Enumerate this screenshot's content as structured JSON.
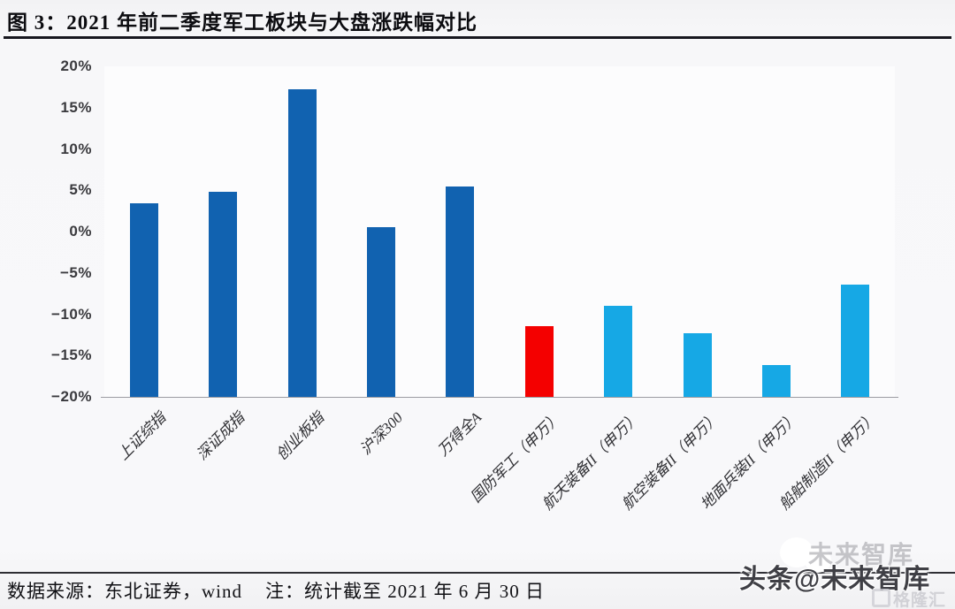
{
  "header": {
    "title": "图 3：2021 年前二季度军工板块与大盘涨跌幅对比"
  },
  "chart_data": {
    "type": "bar",
    "title": "2021 年前二季度军工板块与大盘涨跌幅对比",
    "categories": [
      "上证综指",
      "深证成指",
      "创业板指",
      "沪深300",
      "万得全A",
      "国防军工（申万）",
      "航天装备II（申万）",
      "航空装备II（申万）",
      "地面兵装II（申万）",
      "船舶制造II（申万）"
    ],
    "values": [
      3.4,
      4.8,
      17.2,
      0.5,
      5.5,
      -11.4,
      -9.0,
      -12.3,
      -16.1,
      -6.4
    ],
    "bar_colors": [
      "#1162b0",
      "#1162b0",
      "#1162b0",
      "#1162b0",
      "#1162b0",
      "#f40000",
      "#16a8e5",
      "#16a8e5",
      "#16a8e5",
      "#16a8e5"
    ],
    "unit": "%",
    "ylim": [
      -20,
      20
    ],
    "yticks": [
      20,
      15,
      10,
      5,
      0,
      -5,
      -10,
      -15,
      -20
    ],
    "ytick_labels": [
      "20%",
      "15%",
      "10%",
      "5%",
      "0%",
      "−5%",
      "−10%",
      "−15%",
      "−20%"
    ],
    "bar_base": -20,
    "grid": false,
    "legend": "none",
    "xlabel": "",
    "ylabel": ""
  },
  "footer": {
    "source": "数据来源：东北证券，wind",
    "note": "注：统计截至 2021 年 6 月 30 日"
  },
  "watermark": {
    "text": "头条@未来智库",
    "ghost_text": "未来智库",
    "logo_text": "格隆汇"
  },
  "colors": {
    "bar_dark_blue": "#1162b0",
    "bar_red": "#f40000",
    "bar_light_blue": "#16a8e5",
    "title_rule": "#17171f",
    "axis_line": "#9c9ca2",
    "background": "#f7f7f9"
  }
}
